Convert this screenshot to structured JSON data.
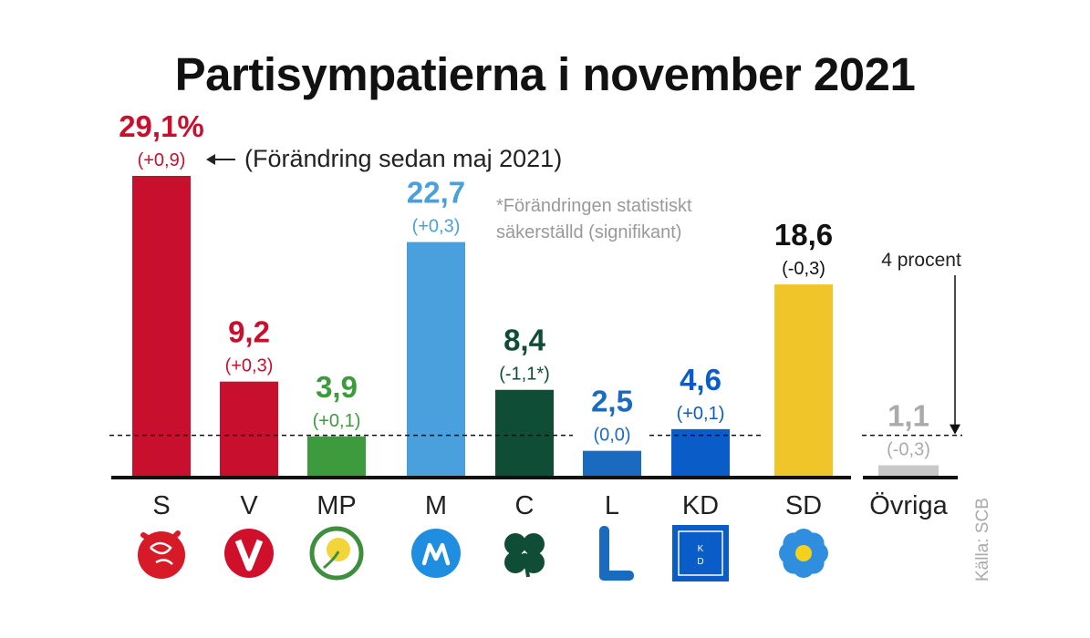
{
  "chart_data": {
    "type": "bar",
    "title": "Partisympatierna i november 2021",
    "categories": [
      "S",
      "V",
      "MP",
      "M",
      "C",
      "L",
      "KD",
      "SD",
      "Övriga"
    ],
    "values": [
      29.1,
      9.2,
      3.9,
      22.7,
      8.4,
      2.5,
      4.6,
      18.6,
      1.1
    ],
    "value_labels": [
      "29,1%",
      "9,2",
      "3,9",
      "22,7",
      "8,4",
      "2,5",
      "4,6",
      "18,6",
      "1,1"
    ],
    "change_labels": [
      "(+0,9)",
      "(+0,3)",
      "(+0,1)",
      "(+0,3)",
      "(-1,1*)",
      "(0,0)",
      "(+0,1)",
      "(-0,3)",
      "(-0,3)"
    ],
    "colors": [
      "#c8102e",
      "#c8102e",
      "#3d9a3d",
      "#4aa0dc",
      "#0f4d36",
      "#1a6bc0",
      "#0a5dc8",
      "#f0c52a",
      "#c8c8c8"
    ],
    "label_colors": [
      "#c8102e",
      "#c8102e",
      "#3d9a3d",
      "#4aa0dc",
      "#0f4d36",
      "#1a6bc0",
      "#0a5dc8",
      "#111111",
      "#aaaaaa"
    ],
    "icons": [
      "rose-icon",
      "v-logo-icon",
      "dandelion-icon",
      "m-logo-icon",
      "four-leaf-clover-icon",
      "l-logo-icon",
      "kd-logo-icon",
      "blue-anemone-icon",
      ""
    ],
    "threshold": 4,
    "threshold_label": "4 procent",
    "change_note": "(Förändring sedan maj 2021)",
    "significance_note": [
      "*Förändringen statistiskt",
      "säkerställd (signifikant)"
    ],
    "source": "Källa: SCB",
    "ylim": [
      0,
      30
    ],
    "grid": false
  }
}
